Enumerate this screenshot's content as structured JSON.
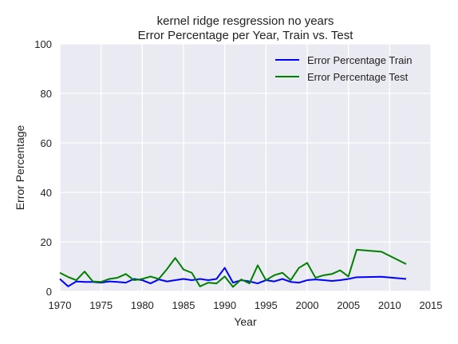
{
  "chart_data": {
    "type": "line",
    "title_lines": [
      "kernel ridge resgression no years",
      "Error Percentage per Year, Train vs. Test"
    ],
    "xlabel": "Year",
    "ylabel": "Error Percentage",
    "xlim": [
      1970,
      2015
    ],
    "ylim": [
      0,
      100
    ],
    "xticks": [
      1970,
      1975,
      1980,
      1985,
      1990,
      1995,
      2000,
      2005,
      2010,
      2015
    ],
    "yticks": [
      0,
      20,
      40,
      60,
      80,
      100
    ],
    "grid": true,
    "legend_position": "top-right",
    "series": [
      {
        "name": "Error Percentage Train",
        "color": "#0000ff",
        "x": [
          1970,
          1971,
          1972,
          1973,
          1974,
          1975,
          1976,
          1977,
          1978,
          1979,
          1980,
          1981,
          1982,
          1983,
          1984,
          1985,
          1986,
          1987,
          1988,
          1989,
          1990,
          1991,
          1992,
          1993,
          1994,
          1995,
          1996,
          1997,
          1998,
          1999,
          2000,
          2001,
          2002,
          2003,
          2004,
          2005,
          2006,
          2009,
          2012
        ],
        "values": [
          5.0,
          2.0,
          4.0,
          3.8,
          3.8,
          3.5,
          4.0,
          3.8,
          3.5,
          5.0,
          4.5,
          3.2,
          4.8,
          4.0,
          4.5,
          5.0,
          4.5,
          5.0,
          4.5,
          5.0,
          9.5,
          3.5,
          4.5,
          4.0,
          3.2,
          4.5,
          4.0,
          5.0,
          3.8,
          3.5,
          4.5,
          4.8,
          4.5,
          4.2,
          4.5,
          5.0,
          5.7,
          5.9,
          5.0
        ]
      },
      {
        "name": "Error Percentage Test",
        "color": "#008000",
        "x": [
          1970,
          1971,
          1972,
          1973,
          1974,
          1975,
          1976,
          1977,
          1978,
          1979,
          1980,
          1981,
          1982,
          1983,
          1984,
          1985,
          1986,
          1987,
          1988,
          1989,
          1990,
          1991,
          1992,
          1993,
          1994,
          1995,
          1996,
          1997,
          1998,
          1999,
          2000,
          2001,
          2002,
          2003,
          2004,
          2005,
          2006,
          2009,
          2012
        ],
        "values": [
          7.5,
          5.8,
          4.5,
          8.0,
          4.0,
          3.8,
          5.0,
          5.5,
          7.0,
          4.5,
          5.0,
          6.0,
          5.0,
          9.0,
          13.5,
          8.8,
          7.5,
          2.0,
          3.5,
          3.2,
          6.0,
          1.8,
          4.8,
          3.2,
          10.5,
          4.5,
          6.5,
          7.5,
          4.5,
          9.5,
          11.5,
          5.5,
          6.5,
          7.0,
          8.5,
          6.0,
          16.8,
          16.0,
          11.0
        ]
      }
    ]
  }
}
